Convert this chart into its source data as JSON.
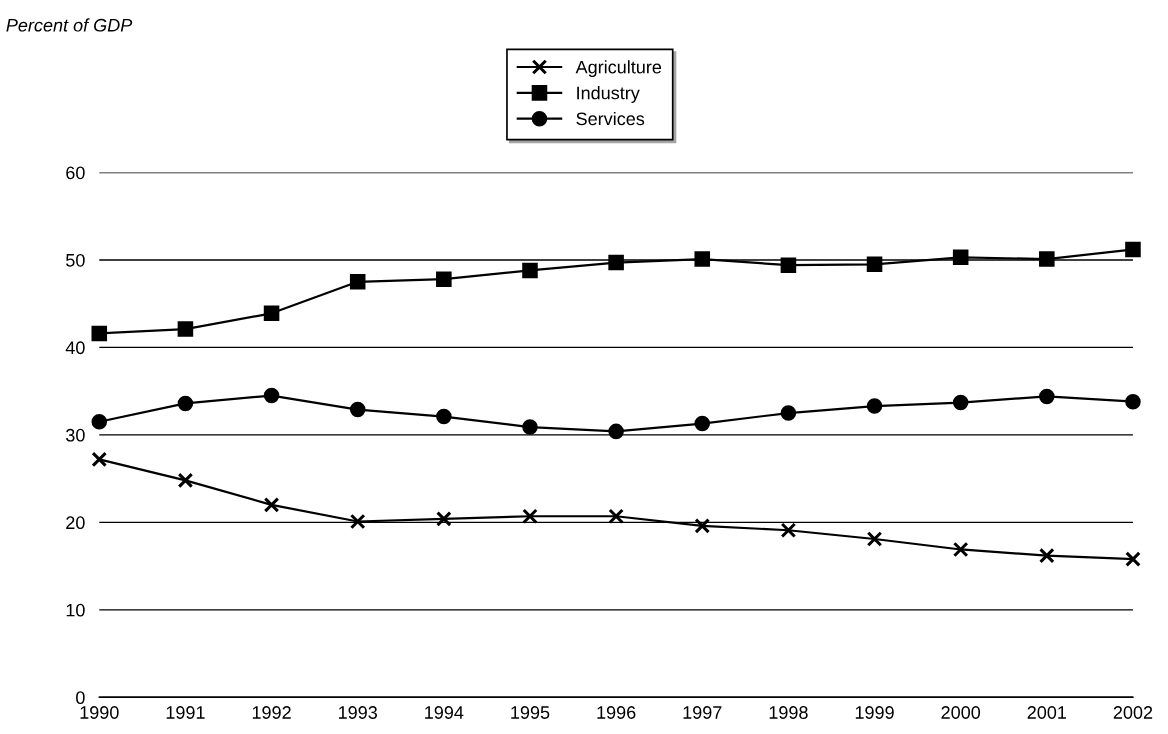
{
  "chart_data": {
    "type": "line",
    "annotations": [
      "Percent of GDP"
    ],
    "x": [
      1990,
      1991,
      1992,
      1993,
      1994,
      1995,
      1996,
      1997,
      1998,
      1999,
      2000,
      2001,
      2002
    ],
    "xlim": [
      1990,
      2002
    ],
    "xticks": [
      1990,
      1991,
      1992,
      1993,
      1994,
      1995,
      1996,
      1997,
      1998,
      1999,
      2000,
      2001,
      2002
    ],
    "ylim": [
      0,
      60
    ],
    "yticks": [
      0,
      10,
      20,
      30,
      40,
      50,
      60
    ],
    "grid": "y",
    "legend": "top",
    "series": [
      {
        "name": "Agriculture",
        "color": "#000000",
        "marker": "cross",
        "values": [
          27.2,
          24.8,
          22.0,
          20.1,
          20.4,
          20.7,
          20.7,
          19.6,
          19.1,
          18.1,
          16.9,
          16.2,
          15.8
        ]
      },
      {
        "name": "Industry",
        "color": "#000000",
        "marker": "square",
        "values": [
          41.6,
          42.1,
          43.9,
          47.5,
          47.8,
          48.8,
          49.7,
          50.1,
          49.4,
          49.5,
          50.3,
          50.1,
          51.2
        ]
      },
      {
        "name": "Services",
        "color": "#000000",
        "marker": "circle",
        "values": [
          31.5,
          33.6,
          34.5,
          32.9,
          32.1,
          30.9,
          30.4,
          31.3,
          32.5,
          33.3,
          33.7,
          34.4,
          33.8
        ]
      }
    ]
  }
}
